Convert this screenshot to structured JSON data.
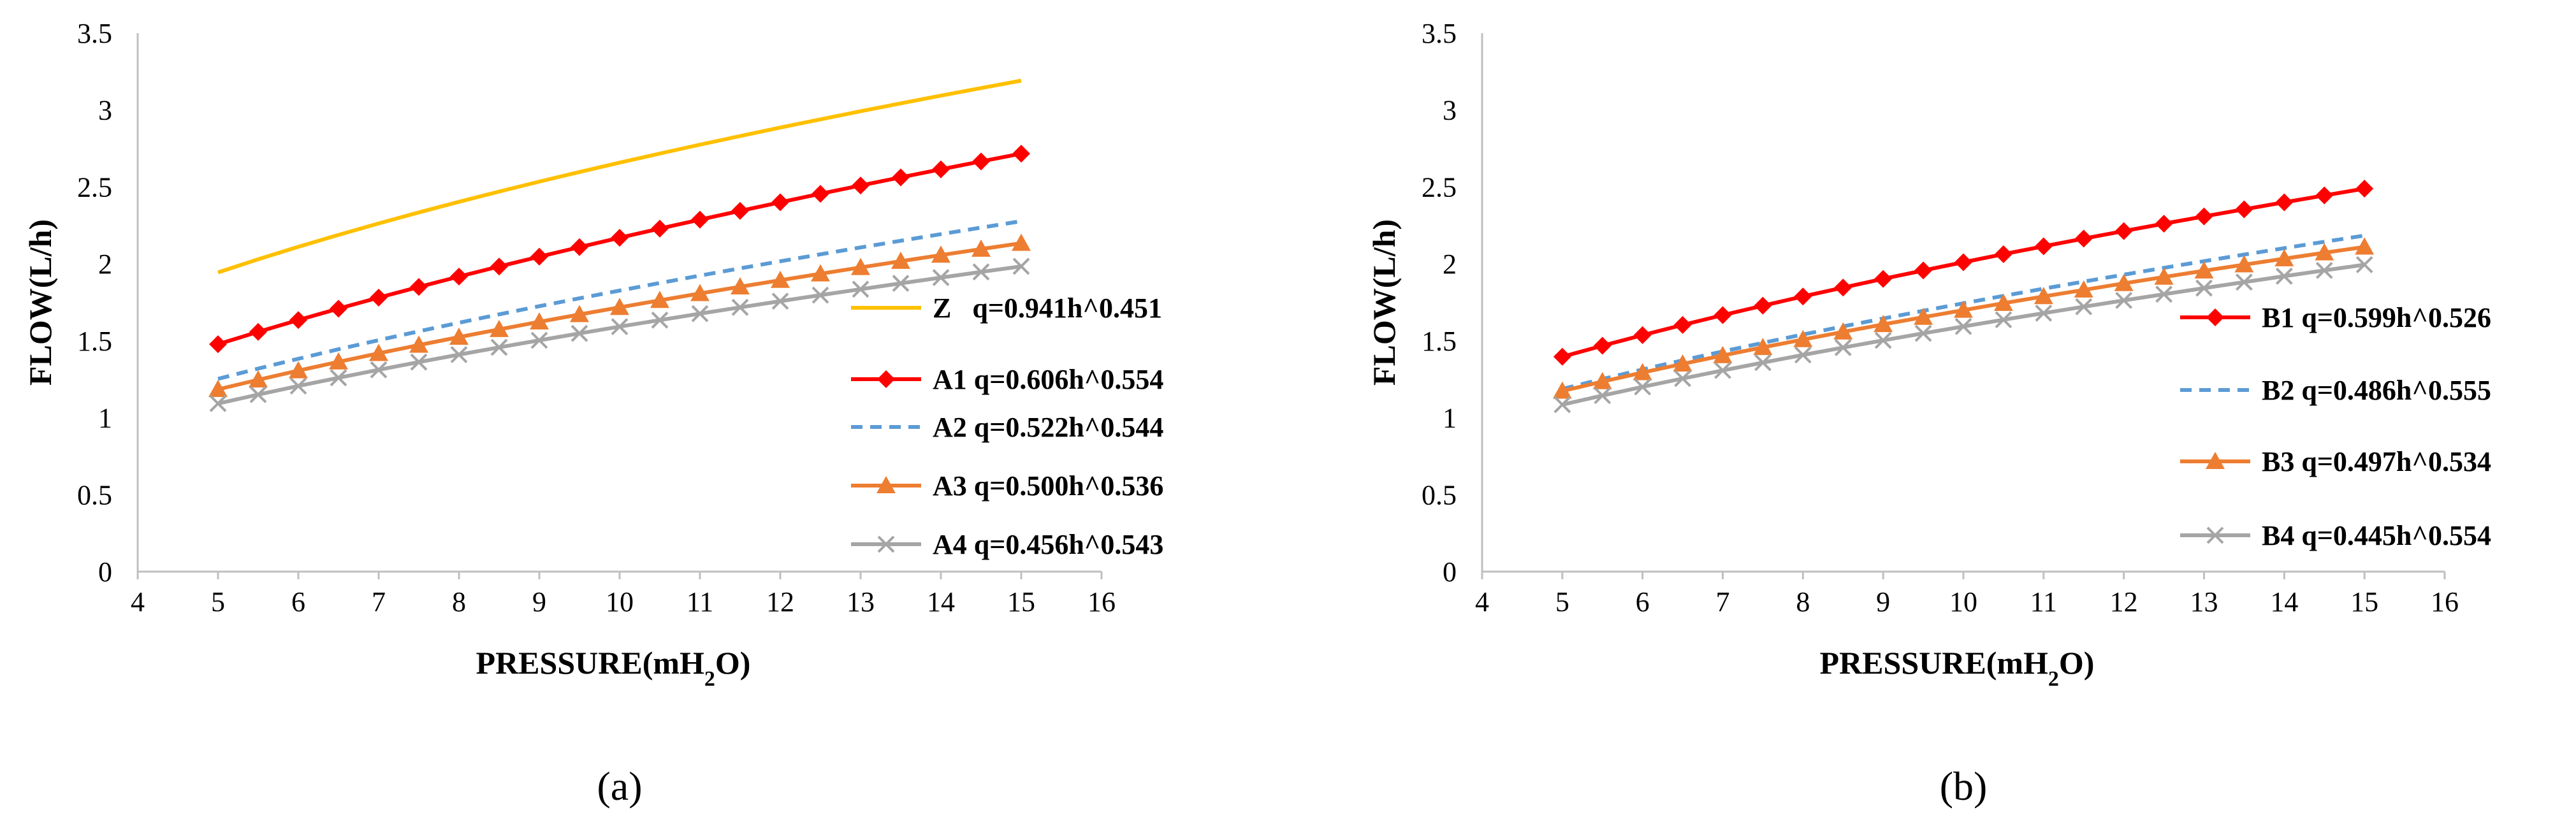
{
  "chart_data": [
    {
      "type": "line",
      "panel_label": "(a)",
      "xlabel": "PRESSURE(mH2O)",
      "xlabel_main": "PRESSURE(mH",
      "xlabel_sub": "2",
      "xlabel_end": "O)",
      "ylabel": "FLOW(L/h)",
      "xlim": [
        4,
        16
      ],
      "ylim": [
        0,
        3.5
      ],
      "xticks": [
        "4",
        "5",
        "6",
        "7",
        "8",
        "9",
        "10",
        "11",
        "12",
        "13",
        "14",
        "15",
        "16"
      ],
      "yticks": [
        "0",
        "0.5",
        "1",
        "1.5",
        "2",
        "2.5",
        "3",
        "3.5"
      ],
      "x_range": [
        5,
        15
      ],
      "x_step": 0.5,
      "legend_position": "right",
      "series": [
        {
          "name": "Z",
          "formula": "q=0.941h^0.451",
          "coef": 0.941,
          "exp": 0.451,
          "color": "#ffc000",
          "dash": "",
          "marker": "none"
        },
        {
          "name": "A1",
          "formula": "q=0.606h^0.554",
          "coef": 0.606,
          "exp": 0.554,
          "color": "#ff0000",
          "dash": "",
          "marker": "diamond"
        },
        {
          "name": "A2",
          "formula": "q=0.522h^0.544",
          "coef": 0.522,
          "exp": 0.544,
          "color": "#5b9bd5",
          "dash": "18 12",
          "marker": "none"
        },
        {
          "name": "A3",
          "formula": "q=0.500h^0.536",
          "coef": 0.5,
          "exp": 0.536,
          "color": "#ed7d31",
          "dash": "",
          "marker": "triangle"
        },
        {
          "name": "A4",
          "formula": "q=0.456h^0.543",
          "coef": 0.456,
          "exp": 0.543,
          "color": "#a5a5a5",
          "dash": "",
          "marker": "x"
        }
      ]
    },
    {
      "type": "line",
      "panel_label": "(b)",
      "xlabel": "PRESSURE(mH2O)",
      "xlabel_main": "PRESSURE(mH",
      "xlabel_sub": "2",
      "xlabel_end": "O)",
      "ylabel": "FLOW(L/h)",
      "xlim": [
        4,
        16
      ],
      "ylim": [
        0,
        3.5
      ],
      "xticks": [
        "4",
        "5",
        "6",
        "7",
        "8",
        "9",
        "10",
        "11",
        "12",
        "13",
        "14",
        "15",
        "16"
      ],
      "yticks": [
        "0",
        "0.5",
        "1",
        "1.5",
        "2",
        "2.5",
        "3",
        "3.5"
      ],
      "x_range": [
        5,
        15
      ],
      "x_step": 0.5,
      "legend_position": "right",
      "series": [
        {
          "name": "B1",
          "formula": "q=0.599h^0.526",
          "coef": 0.599,
          "exp": 0.526,
          "color": "#ff0000",
          "dash": "",
          "marker": "diamond"
        },
        {
          "name": "B2",
          "formula": "q=0.486h^0.555",
          "coef": 0.486,
          "exp": 0.555,
          "color": "#5b9bd5",
          "dash": "18 12",
          "marker": "none"
        },
        {
          "name": "B3",
          "formula": "q=0.497h^0.534",
          "coef": 0.497,
          "exp": 0.534,
          "color": "#ed7d31",
          "dash": "",
          "marker": "triangle"
        },
        {
          "name": "B4",
          "formula": "q=0.445h^0.554",
          "coef": 0.445,
          "exp": 0.554,
          "color": "#a5a5a5",
          "dash": "",
          "marker": "x"
        }
      ]
    }
  ]
}
